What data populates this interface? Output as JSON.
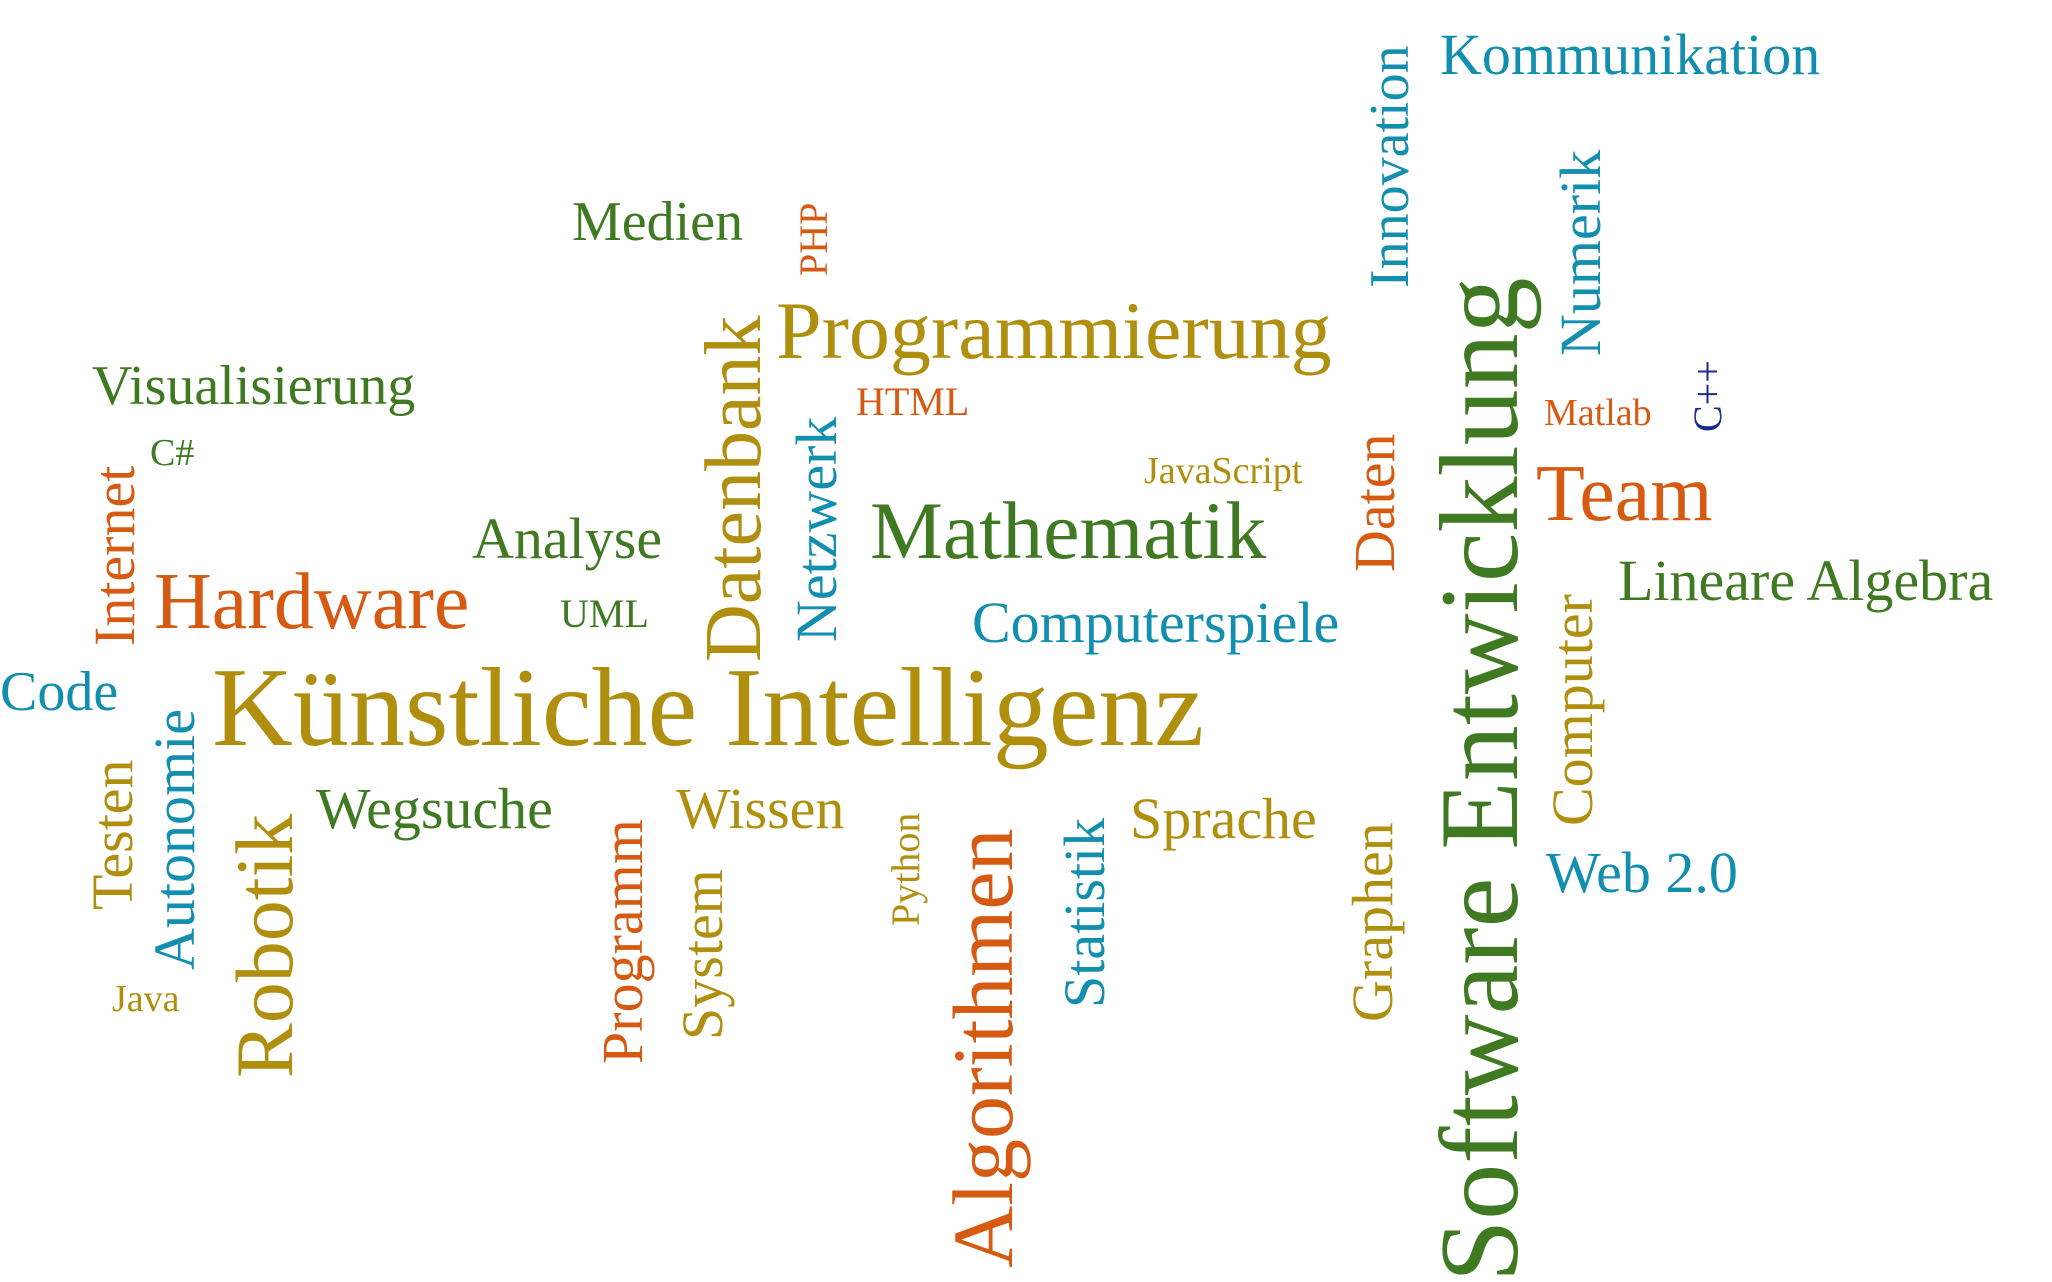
{
  "palette": {
    "olive": "#B08E0E",
    "green": "#3F7A22",
    "orange": "#D65A12",
    "teal": "#128EAF",
    "navy": "#1A2B8C"
  },
  "words": {
    "kuenstliche_intelligenz": {
      "text": "Künstliche Intelligenz",
      "color": "olive",
      "orientation": "horizontal"
    },
    "software_entwicklung": {
      "text": "Software Entwicklung",
      "color": "green",
      "orientation": "vertical"
    },
    "algorithmen": {
      "text": "Algorithmen",
      "color": "orange",
      "orientation": "vertical"
    },
    "programmierung": {
      "text": "Programmierung",
      "color": "olive",
      "orientation": "horizontal"
    },
    "mathematik": {
      "text": "Mathematik",
      "color": "green",
      "orientation": "horizontal"
    },
    "robotik": {
      "text": "Robotik",
      "color": "olive",
      "orientation": "vertical"
    },
    "datenbank": {
      "text": "Datenbank",
      "color": "olive",
      "orientation": "vertical"
    },
    "hardware": {
      "text": "Hardware",
      "color": "orange",
      "orientation": "horizontal"
    },
    "team": {
      "text": "Team",
      "color": "orange",
      "orientation": "horizontal"
    },
    "kommunikation": {
      "text": "Kommunikation",
      "color": "teal",
      "orientation": "horizontal"
    },
    "innovation": {
      "text": "Innovation",
      "color": "teal",
      "orientation": "vertical"
    },
    "numerik": {
      "text": "Numerik",
      "color": "teal",
      "orientation": "vertical"
    },
    "medien": {
      "text": "Medien",
      "color": "green",
      "orientation": "horizontal"
    },
    "php": {
      "text": "PHP",
      "color": "orange",
      "orientation": "vertical"
    },
    "visualisierung": {
      "text": "Visualisierung",
      "color": "green",
      "orientation": "horizontal"
    },
    "csharp": {
      "text": "C#",
      "color": "green",
      "orientation": "horizontal"
    },
    "internet": {
      "text": "Internet",
      "color": "orange",
      "orientation": "vertical"
    },
    "netzwerk": {
      "text": "Netzwerk",
      "color": "teal",
      "orientation": "vertical"
    },
    "html": {
      "text": "HTML",
      "color": "orange",
      "orientation": "horizontal"
    },
    "matlab": {
      "text": "Matlab",
      "color": "orange",
      "orientation": "horizontal"
    },
    "cpp": {
      "text": "C++",
      "color": "navy",
      "orientation": "vertical"
    },
    "javascript": {
      "text": "JavaScript",
      "color": "olive",
      "orientation": "horizontal"
    },
    "daten": {
      "text": "Daten",
      "color": "orange",
      "orientation": "vertical"
    },
    "analyse": {
      "text": "Analyse",
      "color": "green",
      "orientation": "horizontal"
    },
    "lineare_algebra": {
      "text": "Lineare Algebra",
      "color": "green",
      "orientation": "horizontal"
    },
    "uml": {
      "text": "UML",
      "color": "green",
      "orientation": "horizontal"
    },
    "computerspiele": {
      "text": "Computerspiele",
      "color": "teal",
      "orientation": "horizontal"
    },
    "computer": {
      "text": "Computer",
      "color": "olive",
      "orientation": "vertical"
    },
    "code": {
      "text": "Code",
      "color": "teal",
      "orientation": "horizontal"
    },
    "autonomie": {
      "text": "Autonomie",
      "color": "teal",
      "orientation": "vertical"
    },
    "testen": {
      "text": "Testen",
      "color": "olive",
      "orientation": "vertical"
    },
    "wegsuche": {
      "text": "Wegsuche",
      "color": "green",
      "orientation": "horizontal"
    },
    "programm": {
      "text": "Programm",
      "color": "orange",
      "orientation": "vertical"
    },
    "wissen": {
      "text": "Wissen",
      "color": "olive",
      "orientation": "horizontal"
    },
    "system": {
      "text": "System",
      "color": "olive",
      "orientation": "vertical"
    },
    "python": {
      "text": "Python",
      "color": "olive",
      "orientation": "vertical"
    },
    "statistik": {
      "text": "Statistik",
      "color": "teal",
      "orientation": "vertical"
    },
    "sprache": {
      "text": "Sprache",
      "color": "olive",
      "orientation": "horizontal"
    },
    "graphen": {
      "text": "Graphen",
      "color": "olive",
      "orientation": "vertical"
    },
    "web20": {
      "text": "Web 2.0",
      "color": "teal",
      "orientation": "horizontal"
    },
    "java": {
      "text": "Java",
      "color": "olive",
      "orientation": "horizontal"
    }
  }
}
